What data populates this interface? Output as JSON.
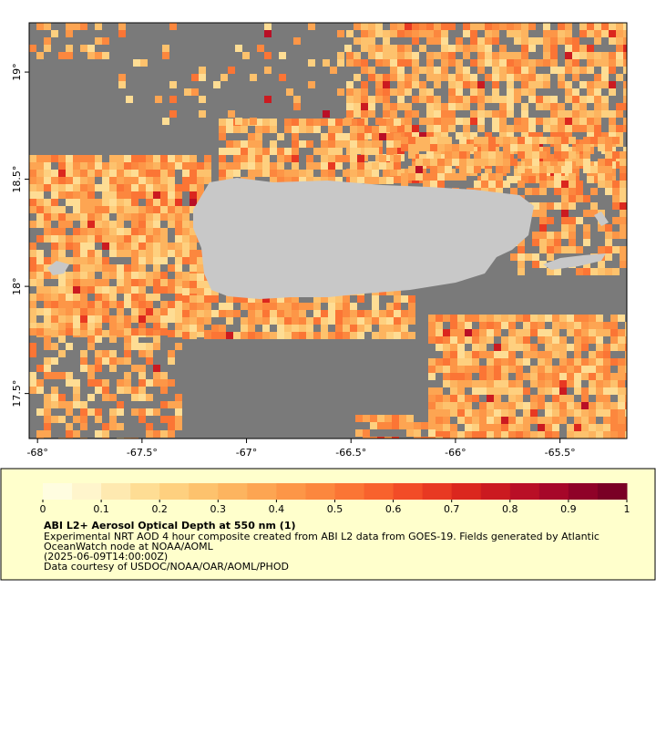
{
  "map": {
    "xlim": [
      -68.04,
      -65.18
    ],
    "ylim": [
      17.29,
      19.23
    ],
    "xticks": [
      {
        "value": -68,
        "label": "-68°"
      },
      {
        "value": -67.5,
        "label": "-67.5°"
      },
      {
        "value": -67,
        "label": "-67°"
      },
      {
        "value": -66.5,
        "label": "-66.5°"
      },
      {
        "value": -66,
        "label": "-66°"
      },
      {
        "value": -65.5,
        "label": "-65.5°"
      }
    ],
    "yticks": [
      {
        "value": 17.5,
        "label": "17.5°"
      },
      {
        "value": 18,
        "label": "18°"
      },
      {
        "value": 18.5,
        "label": "18.5°"
      },
      {
        "value": 19,
        "label": "19°"
      }
    ]
  },
  "colorbar": {
    "range": [
      0,
      1
    ],
    "ticks": [
      0,
      0.1,
      0.2,
      0.3,
      0.4,
      0.5,
      0.6,
      0.7,
      0.8,
      0.9,
      1
    ],
    "colors": [
      "#fffde0",
      "#fff5cc",
      "#fee9b0",
      "#fedd94",
      "#fed07f",
      "#fdc26d",
      "#fdb45f",
      "#fda552",
      "#fd9647",
      "#fc873e",
      "#fb7535",
      "#f8622d",
      "#f24c27",
      "#e83922",
      "#db271e",
      "#cb1a20",
      "#b90f26",
      "#a60729",
      "#8f0228",
      "#7a0025"
    ]
  },
  "legend": {
    "title": "ABI L2+ Aerosol Optical Depth at 550 nm (1)",
    "lines": [
      "Experimental NRT AOD 4 hour composite created from ABI L2 data from GOES-19. Fields generated by Atlantic",
      "OceanWatch node at NOAA/AOML",
      "(2025-06-09T14:00:00Z)",
      "Data courtesy of USDOC/NOAA/OAR/AOML/PHOD"
    ]
  }
}
